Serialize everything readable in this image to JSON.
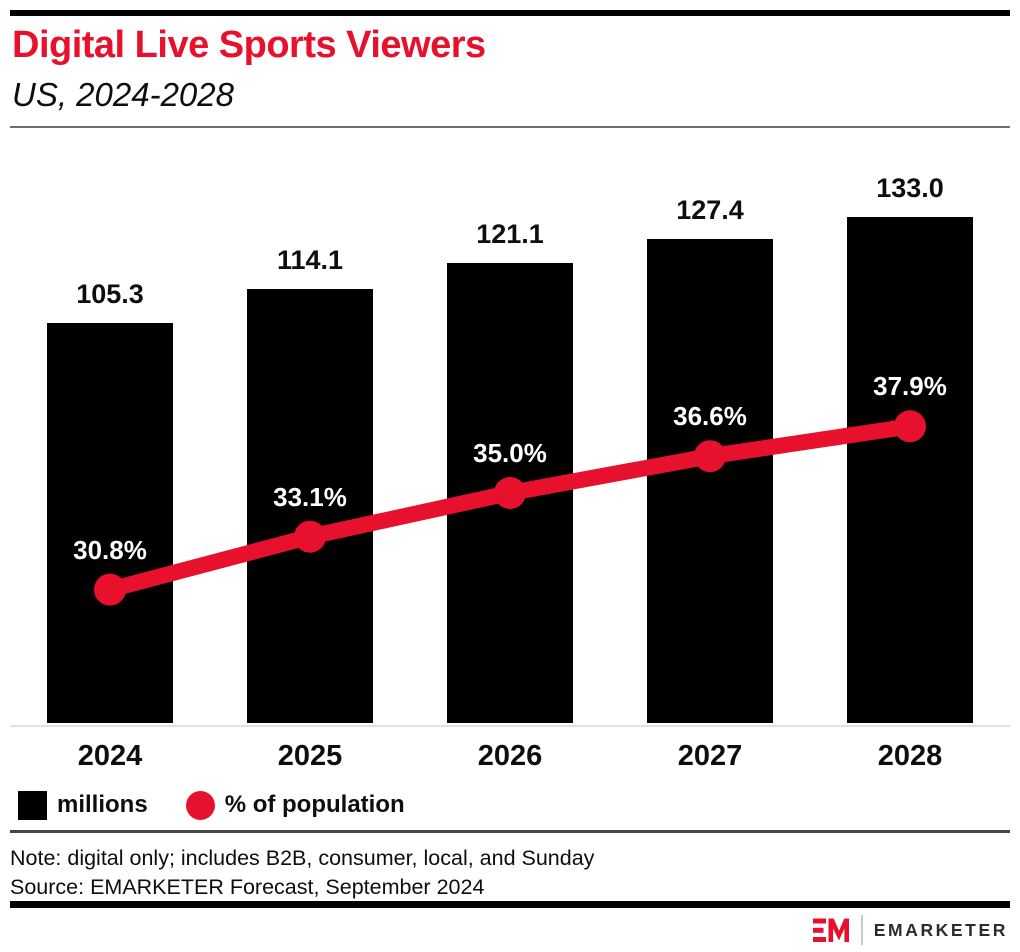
{
  "header": {
    "title": "Digital Live Sports Viewers",
    "subtitle": "US, 2024-2028",
    "title_color": "#e8112d"
  },
  "chart_data": {
    "type": "bar",
    "combo": "bar+line",
    "title": "Digital Live Sports Viewers",
    "subtitle": "US, 2024-2028",
    "categories": [
      "2024",
      "2025",
      "2026",
      "2027",
      "2028"
    ],
    "series": [
      {
        "name": "millions",
        "type": "bar",
        "color": "#000000",
        "values": [
          105.3,
          114.1,
          121.1,
          127.4,
          133.0
        ],
        "label_format": "{v}"
      },
      {
        "name": "% of population",
        "type": "line",
        "color": "#e8112d",
        "values": [
          30.8,
          33.1,
          35.0,
          36.6,
          37.9
        ],
        "label_format": "{v}%"
      }
    ],
    "xlabel": "",
    "ylabel": "",
    "bar_axis_range": [
      0,
      156
    ],
    "line_axis_range": [
      25,
      51
    ],
    "grid": false,
    "value_labels": true,
    "legend_position": "bottom"
  },
  "legend": {
    "items": [
      {
        "label": "millions",
        "swatch": "square",
        "color": "#000000"
      },
      {
        "label": "% of population",
        "swatch": "circle",
        "color": "#e8112d"
      }
    ]
  },
  "notes": {
    "note": "Note: digital only; includes B2B, consumer, local, and Sunday",
    "source": "Source: EMARKETER Forecast, September 2024"
  },
  "footer": {
    "brand": "EMARKETER"
  }
}
